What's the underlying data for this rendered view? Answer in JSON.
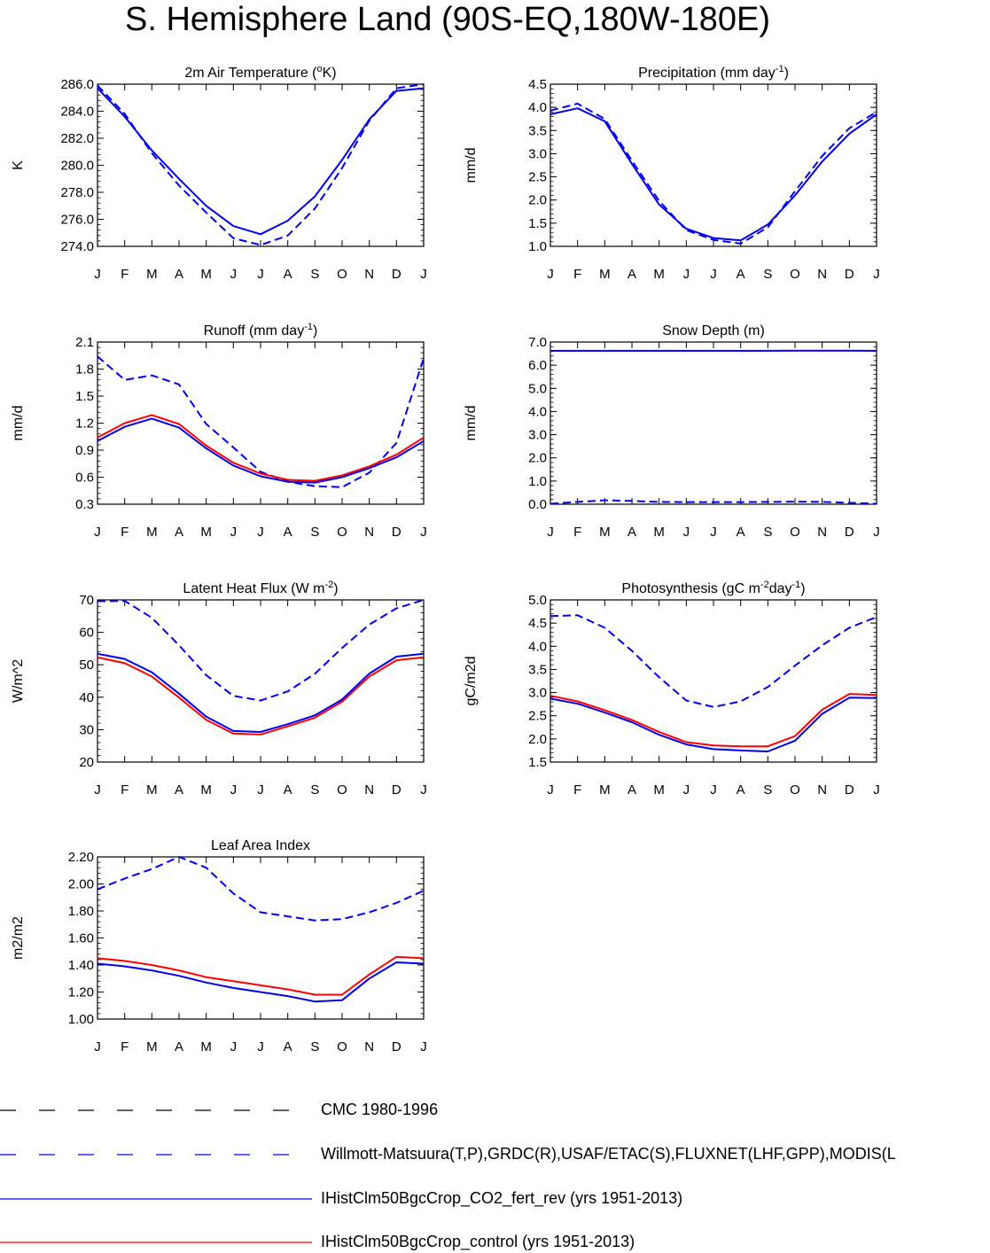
{
  "title": "S. Hemisphere Land (90S-EQ,180W-180E)",
  "colors": {
    "blue": "#0000ee",
    "red": "#ff0000",
    "black": "#000000"
  },
  "legend": [
    {
      "label": "CMC 1980-1996",
      "color": "#000000",
      "style": "dashed"
    },
    {
      "label": "Willmott-Matsuura(T,P),GRDC(R),USAF/ETAC(S),FLUXNET(LHF,GPP),MODIS(L",
      "color": "#0000ee",
      "style": "dashed"
    },
    {
      "label": "IHistClm50BgcCrop_CO2_fert_rev (yrs 1951-2013)",
      "color": "#0000ee",
      "style": "solid"
    },
    {
      "label": "IHistClm50BgcCrop_control (yrs 1951-2013)",
      "color": "#ff0000",
      "style": "solid"
    }
  ],
  "chart_data": [
    {
      "type": "line",
      "title": "2m Air Temperature (",
      "title_sup": "o",
      "title_after": "K)",
      "title_sup2": "",
      "title_after2": "",
      "ylabel": "K",
      "ylim": [
        274,
        286
      ],
      "yticks": [
        "274.0",
        "276.0",
        "278.0",
        "280.0",
        "282.0",
        "284.0",
        "286.0"
      ],
      "ytick_values": [
        274,
        276,
        278,
        280,
        282,
        284,
        286
      ],
      "minor_step": 0.4,
      "x": [
        "J",
        "F",
        "M",
        "A",
        "M",
        "J",
        "J",
        "A",
        "S",
        "O",
        "N",
        "D",
        "J"
      ],
      "series": [
        {
          "color": "#0000ee",
          "style": "dashed",
          "values": [
            285.9,
            283.8,
            280.9,
            278.5,
            276.5,
            274.6,
            274.1,
            274.8,
            276.8,
            279.8,
            283.3,
            285.7,
            286.0
          ]
        },
        {
          "color": "#0000ee",
          "style": "solid",
          "values": [
            285.7,
            283.6,
            281.1,
            279.0,
            277.0,
            275.5,
            274.9,
            275.9,
            277.7,
            280.4,
            283.4,
            285.5,
            285.7
          ]
        }
      ]
    },
    {
      "type": "line",
      "title": "Precipitation (mm day",
      "title_sup": "-1",
      "title_after": ")",
      "title_sup2": "",
      "title_after2": "",
      "ylabel": "mm/d",
      "ylim": [
        1.0,
        4.5
      ],
      "yticks": [
        "1.0",
        "1.5",
        "2.0",
        "2.5",
        "3.0",
        "3.5",
        "4.0",
        "4.5"
      ],
      "ytick_values": [
        1.0,
        1.5,
        2.0,
        2.5,
        3.0,
        3.5,
        4.0,
        4.5
      ],
      "minor_step": 0.1,
      "x": [
        "J",
        "F",
        "M",
        "A",
        "M",
        "J",
        "J",
        "A",
        "S",
        "O",
        "N",
        "D",
        "J"
      ],
      "series": [
        {
          "color": "#0000ee",
          "style": "dashed",
          "values": [
            3.93,
            4.08,
            3.75,
            2.85,
            1.98,
            1.35,
            1.14,
            1.06,
            1.41,
            2.19,
            2.95,
            3.55,
            3.9
          ]
        },
        {
          "color": "#0000ee",
          "style": "solid",
          "values": [
            3.85,
            3.98,
            3.7,
            2.78,
            1.9,
            1.38,
            1.18,
            1.13,
            1.47,
            2.1,
            2.83,
            3.43,
            3.85
          ]
        }
      ]
    },
    {
      "type": "line",
      "title": "Runoff (mm day",
      "title_sup": "-1",
      "title_after": ")",
      "title_sup2": "",
      "title_after2": "",
      "ylabel": "mm/d",
      "ylim": [
        0.3,
        2.1
      ],
      "yticks": [
        "0.3",
        "0.6",
        "0.9",
        "1.2",
        "1.5",
        "1.8",
        "2.1"
      ],
      "ytick_values": [
        0.3,
        0.6,
        0.9,
        1.2,
        1.5,
        1.8,
        2.1
      ],
      "minor_step": 0.06,
      "x": [
        "J",
        "F",
        "M",
        "A",
        "M",
        "J",
        "J",
        "A",
        "S",
        "O",
        "N",
        "D",
        "J"
      ],
      "series": [
        {
          "color": "#0000ee",
          "style": "dashed",
          "values": [
            1.94,
            1.68,
            1.73,
            1.63,
            1.19,
            0.93,
            0.66,
            0.55,
            0.5,
            0.49,
            0.65,
            0.98,
            1.92
          ]
        },
        {
          "color": "#ff0000",
          "style": "solid",
          "values": [
            1.04,
            1.2,
            1.29,
            1.19,
            0.95,
            0.76,
            0.64,
            0.57,
            0.56,
            0.62,
            0.72,
            0.85,
            1.04
          ]
        },
        {
          "color": "#0000ee",
          "style": "solid",
          "values": [
            1.0,
            1.16,
            1.25,
            1.15,
            0.92,
            0.73,
            0.61,
            0.55,
            0.54,
            0.6,
            0.7,
            0.82,
            1.0
          ]
        }
      ]
    },
    {
      "type": "line",
      "title": "Snow Depth (m)",
      "title_sup": "",
      "title_after": "",
      "title_sup2": "",
      "title_after2": "",
      "ylabel": "mm/d",
      "ylim": [
        0.0,
        7.0
      ],
      "yticks": [
        "0.0",
        "1.0",
        "2.0",
        "3.0",
        "4.0",
        "5.0",
        "6.0",
        "7.0"
      ],
      "ytick_values": [
        0,
        1,
        2,
        3,
        4,
        5,
        6,
        7
      ],
      "minor_step": 0.2,
      "x": [
        "J",
        "F",
        "M",
        "A",
        "M",
        "J",
        "J",
        "A",
        "S",
        "O",
        "N",
        "D",
        "J"
      ],
      "series": [
        {
          "color": "#0000ee",
          "style": "dashed",
          "values": [
            0.02,
            0.1,
            0.17,
            0.14,
            0.1,
            0.09,
            0.09,
            0.09,
            0.1,
            0.11,
            0.1,
            0.06,
            0.02
          ]
        },
        {
          "color": "#0000ee",
          "style": "solid",
          "values": [
            6.62,
            6.62,
            6.62,
            6.62,
            6.62,
            6.62,
            6.62,
            6.62,
            6.62,
            6.63,
            6.63,
            6.63,
            6.62
          ]
        }
      ]
    },
    {
      "type": "line",
      "title": "Latent Heat Flux (W m",
      "title_sup": "-2",
      "title_after": ")",
      "title_sup2": "",
      "title_after2": "",
      "ylabel": "W/m^2",
      "ylim": [
        20,
        70
      ],
      "yticks": [
        "20",
        "30",
        "40",
        "50",
        "60",
        "70"
      ],
      "ytick_values": [
        20,
        30,
        40,
        50,
        60,
        70
      ],
      "minor_step": 2,
      "x": [
        "J",
        "F",
        "M",
        "A",
        "M",
        "J",
        "J",
        "A",
        "S",
        "O",
        "N",
        "D",
        "J"
      ],
      "series": [
        {
          "color": "#0000ee",
          "style": "dashed",
          "values": [
            69.6,
            69.7,
            64.5,
            56.0,
            46.8,
            40.4,
            39.0,
            41.8,
            47.2,
            55.2,
            62.4,
            67.4,
            70.0
          ]
        },
        {
          "color": "#ff0000",
          "style": "solid",
          "values": [
            52.3,
            50.5,
            46.4,
            39.9,
            33.0,
            28.8,
            28.5,
            31.0,
            33.7,
            38.6,
            46.4,
            51.4,
            52.3
          ]
        },
        {
          "color": "#0000ee",
          "style": "solid",
          "values": [
            53.4,
            51.8,
            47.7,
            41.1,
            34.0,
            29.6,
            29.3,
            31.7,
            34.4,
            39.3,
            47.3,
            52.5,
            53.4
          ]
        }
      ]
    },
    {
      "type": "line",
      "title": "Photosynthesis (gC m",
      "title_sup": "-2",
      "title_after": "day",
      "title_sup2": "-1",
      "title_after2": ")",
      "ylabel": "gC/m2d",
      "ylim": [
        1.5,
        5.0
      ],
      "yticks": [
        "1.5",
        "2.0",
        "2.5",
        "3.0",
        "3.5",
        "4.0",
        "4.5",
        "5.0"
      ],
      "ytick_values": [
        1.5,
        2.0,
        2.5,
        3.0,
        3.5,
        4.0,
        4.5,
        5.0
      ],
      "minor_step": 0.1,
      "x": [
        "J",
        "F",
        "M",
        "A",
        "M",
        "J",
        "J",
        "A",
        "S",
        "O",
        "N",
        "D",
        "J"
      ],
      "series": [
        {
          "color": "#0000ee",
          "style": "dashed",
          "values": [
            4.65,
            4.67,
            4.4,
            3.9,
            3.33,
            2.83,
            2.69,
            2.81,
            3.12,
            3.58,
            4.02,
            4.4,
            4.63
          ]
        },
        {
          "color": "#ff0000",
          "style": "solid",
          "values": [
            2.93,
            2.81,
            2.62,
            2.41,
            2.15,
            1.93,
            1.86,
            1.84,
            1.84,
            2.06,
            2.63,
            2.97,
            2.95
          ]
        },
        {
          "color": "#0000ee",
          "style": "solid",
          "values": [
            2.87,
            2.76,
            2.57,
            2.36,
            2.09,
            1.88,
            1.78,
            1.75,
            1.73,
            1.96,
            2.54,
            2.89,
            2.88
          ]
        }
      ]
    },
    {
      "type": "line",
      "title": "Leaf Area Index",
      "title_sup": "",
      "title_after": "",
      "title_sup2": "",
      "title_after2": "",
      "ylabel": "m2/m2",
      "ylim": [
        1.0,
        2.2
      ],
      "yticks": [
        "1.00",
        "1.20",
        "1.40",
        "1.60",
        "1.80",
        "2.00",
        "2.20"
      ],
      "ytick_values": [
        1.0,
        1.2,
        1.4,
        1.6,
        1.8,
        2.0,
        2.2
      ],
      "minor_step": 0.04,
      "x": [
        "J",
        "F",
        "M",
        "A",
        "M",
        "J",
        "J",
        "A",
        "S",
        "O",
        "N",
        "D",
        "J"
      ],
      "series": [
        {
          "color": "#0000ee",
          "style": "dashed",
          "values": [
            1.96,
            2.04,
            2.11,
            2.2,
            2.12,
            1.93,
            1.79,
            1.76,
            1.73,
            1.74,
            1.79,
            1.86,
            1.95
          ]
        },
        {
          "color": "#ff0000",
          "style": "solid",
          "values": [
            1.45,
            1.43,
            1.4,
            1.36,
            1.31,
            1.28,
            1.25,
            1.22,
            1.18,
            1.18,
            1.33,
            1.46,
            1.45
          ]
        },
        {
          "color": "#0000ee",
          "style": "solid",
          "values": [
            1.41,
            1.39,
            1.36,
            1.32,
            1.27,
            1.23,
            1.2,
            1.17,
            1.13,
            1.14,
            1.3,
            1.42,
            1.41
          ]
        }
      ]
    }
  ]
}
